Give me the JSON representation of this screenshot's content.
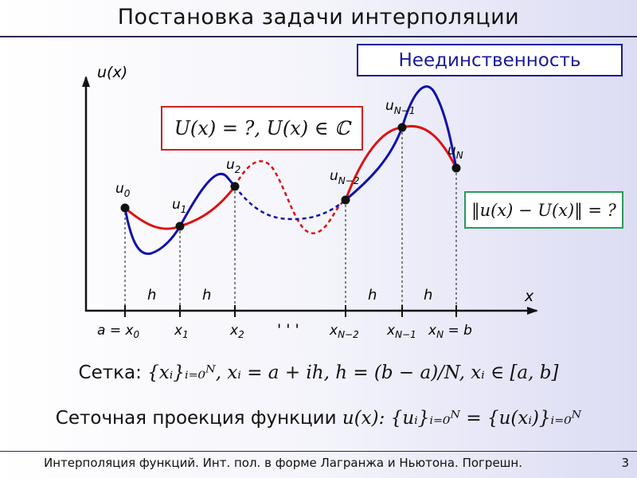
{
  "title": "Постановка задачи интерполяции",
  "subtitle_box": "Неединственность",
  "question_box": "U(x) = ?,  U(x) ∈ ℂ",
  "error_box": "‖u(x) − U(x)‖ = ?",
  "colors": {
    "red_curve": "#dd1111",
    "blue_curve": "#1111aa",
    "subtitle_border": "#1a1a9a",
    "question_border": "#cc2222",
    "error_border": "#2a9a5a"
  },
  "diagram": {
    "y_axis_label": "u(x)",
    "x_axis_label": "x",
    "step_label": "h",
    "ellipsis": "' ' '",
    "nodes": [
      {
        "u": "u",
        "u_sub": "0",
        "x_label": "a = x",
        "x_sub": "0"
      },
      {
        "u": "u",
        "u_sub": "1",
        "x_label": "x",
        "x_sub": "1"
      },
      {
        "u": "u",
        "u_sub": "2",
        "x_label": "x",
        "x_sub": "2"
      },
      {
        "u": "u",
        "u_sub": "N−2",
        "x_label": "x",
        "x_sub": "N−2"
      },
      {
        "u": "u",
        "u_sub": "N−1",
        "x_label": "x",
        "x_sub": "N−1"
      },
      {
        "u": "u",
        "u_sub": "N",
        "x_label": "x",
        "x_sub": "N",
        "x_suffix": " = b"
      }
    ]
  },
  "grid_line": {
    "label": "Сетка:",
    "formula": "{xᵢ}ᵢ₌₀ᴺ,  xᵢ = a + ih,  h = (b − a)/N,  xᵢ ∈ [a, b]"
  },
  "projection_line": {
    "label": "Сеточная проекция функции",
    "formula": "u(x):  {uᵢ}ᵢ₌₀ᴺ = {u(xᵢ)}ᵢ₌₀ᴺ"
  },
  "footer": "Интерполяция функций. Инт. пол. в форме Лагранжа и Ньютона. Погрешн.",
  "page_number": "3"
}
